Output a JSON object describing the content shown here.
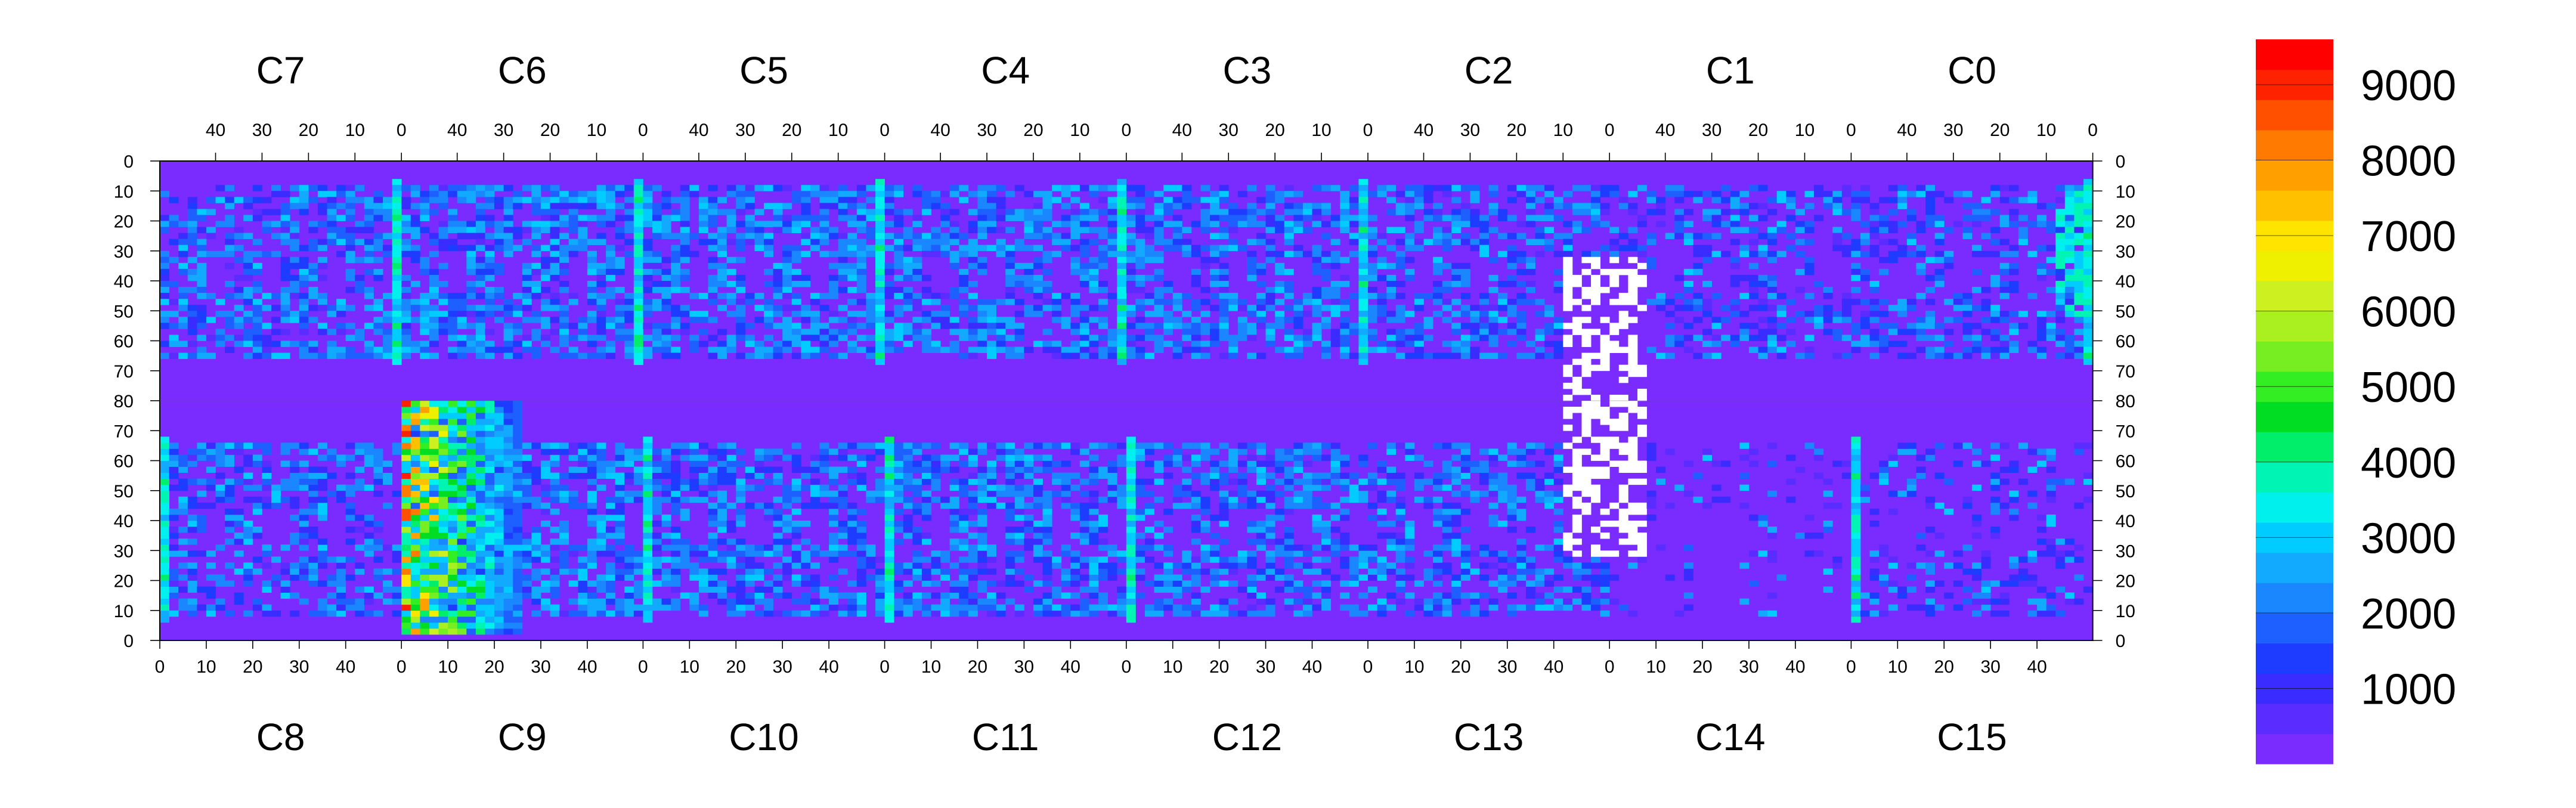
{
  "chart_data": {
    "type": "heatmap",
    "title": "",
    "xlabel": "",
    "ylabel": "",
    "top_chip_labels": [
      "C7",
      "C6",
      "C5",
      "C4",
      "C3",
      "C2",
      "C1",
      "C0"
    ],
    "bottom_chip_labels": [
      "C8",
      "C9",
      "C10",
      "C11",
      "C12",
      "C13",
      "C14",
      "C15"
    ],
    "top_x_ticks": [
      "40",
      "30",
      "20",
      "10",
      "0"
    ],
    "top_x_ticks_first": [
      "40",
      "30",
      "20",
      "10"
    ],
    "top_x_tick_values": [
      40,
      30,
      20,
      10,
      0
    ],
    "bottom_x_ticks": [
      "0",
      "10",
      "20",
      "30",
      "40"
    ],
    "bottom_x_tick_values": [
      0,
      10,
      20,
      30,
      40
    ],
    "chip_columns": 52,
    "y_upper_ticks": [
      "0",
      "10",
      "20",
      "30",
      "40",
      "50",
      "60",
      "70",
      "80"
    ],
    "y_upper_tick_values": [
      0,
      10,
      20,
      30,
      40,
      50,
      60,
      70,
      80
    ],
    "y_lower_ticks": [
      "70",
      "60",
      "50",
      "40",
      "30",
      "20",
      "10",
      "0"
    ],
    "y_lower_tick_values": [
      70,
      60,
      50,
      40,
      30,
      20,
      10,
      0
    ],
    "rows_per_half": 80,
    "z_range": [
      0,
      9600
    ],
    "colorbar_ticks": [
      "1000",
      "2000",
      "3000",
      "4000",
      "5000",
      "6000",
      "7000",
      "8000",
      "9000"
    ],
    "colorbar_tick_values": [
      1000,
      2000,
      3000,
      4000,
      5000,
      6000,
      7000,
      8000,
      9000
    ],
    "palette": [
      "#7a2cff",
      "#5b2cff",
      "#3a2cff",
      "#1e3cff",
      "#1e60ff",
      "#1a86ff",
      "#12aaff",
      "#00ccff",
      "#00f0ee",
      "#00f5b4",
      "#00ee6a",
      "#00dd22",
      "#33ee22",
      "#77ee22",
      "#aaf020",
      "#ccf020",
      "#eef000",
      "#ffe400",
      "#ffc000",
      "#ffa000",
      "#ff7a00",
      "#ff5000",
      "#ff2200",
      "#ff0000"
    ],
    "background_color": "#7a2cff",
    "dead_pixel_color": "#ffffff",
    "background_counts": 150,
    "hot_chip": {
      "label": "C9",
      "peak_counts": 9400,
      "columns": [
        0,
        25
      ],
      "rows": [
        1,
        80
      ]
    },
    "bright_edge_columns": {
      "description_values_counts": 4000
    },
    "dead_region": {
      "chips": [
        "C13",
        "C14"
      ],
      "upper_rows": [
        40,
        80
      ],
      "lower_rows": [
        28,
        80
      ]
    },
    "patterned_chips": [
      "C7",
      "C6",
      "C5",
      "C4",
      "C3",
      "C2",
      "C1",
      "C0",
      "C8",
      "C9",
      "C10",
      "C11",
      "C12",
      "C13",
      "C15"
    ],
    "uniform_chips": [
      "C14",
      "C1"
    ]
  }
}
